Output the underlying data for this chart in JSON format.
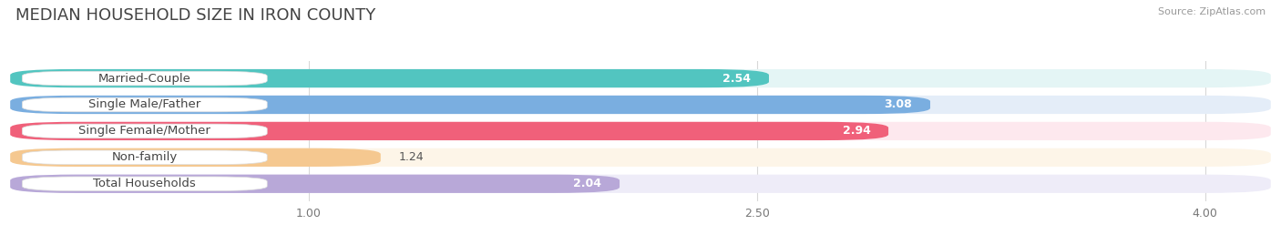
{
  "title": "MEDIAN HOUSEHOLD SIZE IN IRON COUNTY",
  "source": "Source: ZipAtlas.com",
  "categories": [
    "Married-Couple",
    "Single Male/Father",
    "Single Female/Mother",
    "Non-family",
    "Total Households"
  ],
  "values": [
    2.54,
    3.08,
    2.94,
    1.24,
    2.04
  ],
  "bar_colors": [
    "#52c5c0",
    "#7aaee0",
    "#f0607a",
    "#f5c890",
    "#b8a8d8"
  ],
  "bar_bg_colors": [
    "#e4f5f5",
    "#e4edf8",
    "#fde8ee",
    "#fdf5e8",
    "#eeecf8"
  ],
  "label_bg_color": "#ffffff",
  "xlim": [
    0,
    4.22
  ],
  "xticks": [
    1.0,
    2.5,
    4.0
  ],
  "title_fontsize": 13,
  "source_fontsize": 8,
  "label_fontsize": 9.5,
  "value_fontsize": 9,
  "bg_color": "#ffffff",
  "bar_height": 0.7,
  "value_label_threshold": 2.0
}
